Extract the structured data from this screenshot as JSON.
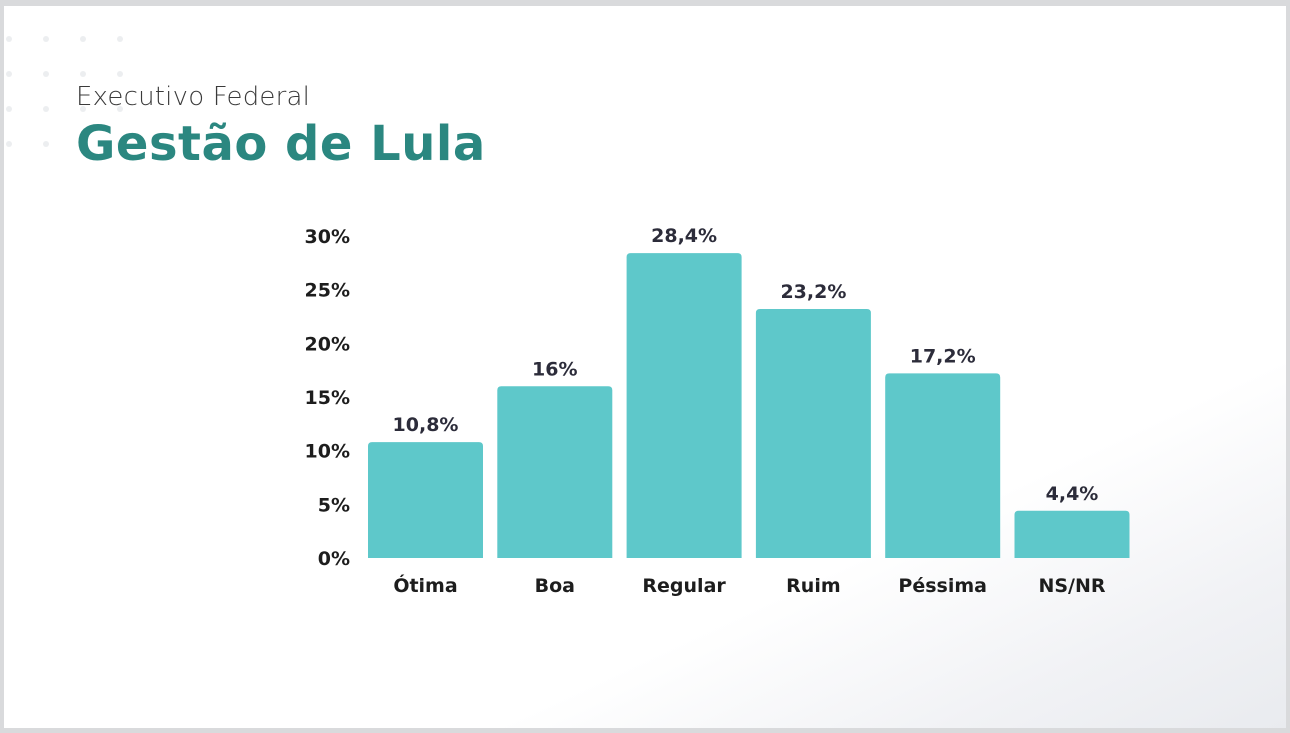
{
  "header": {
    "subtitle": "Executivo Federal",
    "title": "Gestão de Lula"
  },
  "chart_data": {
    "type": "bar",
    "categories": [
      "Ótima",
      "Boa",
      "Regular",
      "Ruim",
      "Péssima",
      "NS/NR"
    ],
    "values": [
      10.8,
      16,
      28.4,
      23.2,
      17.2,
      4.4
    ],
    "value_labels": [
      "10,8%",
      "16%",
      "28,4%",
      "23,2%",
      "17,2%",
      "4,4%"
    ],
    "ylim": [
      0,
      30
    ],
    "yticks": [
      0,
      5,
      10,
      15,
      20,
      25,
      30
    ],
    "ytick_labels": [
      "0%",
      "5%",
      "10%",
      "15%",
      "20%",
      "25%",
      "30%"
    ],
    "grid": false,
    "bar_color": "#5ec8ca"
  }
}
